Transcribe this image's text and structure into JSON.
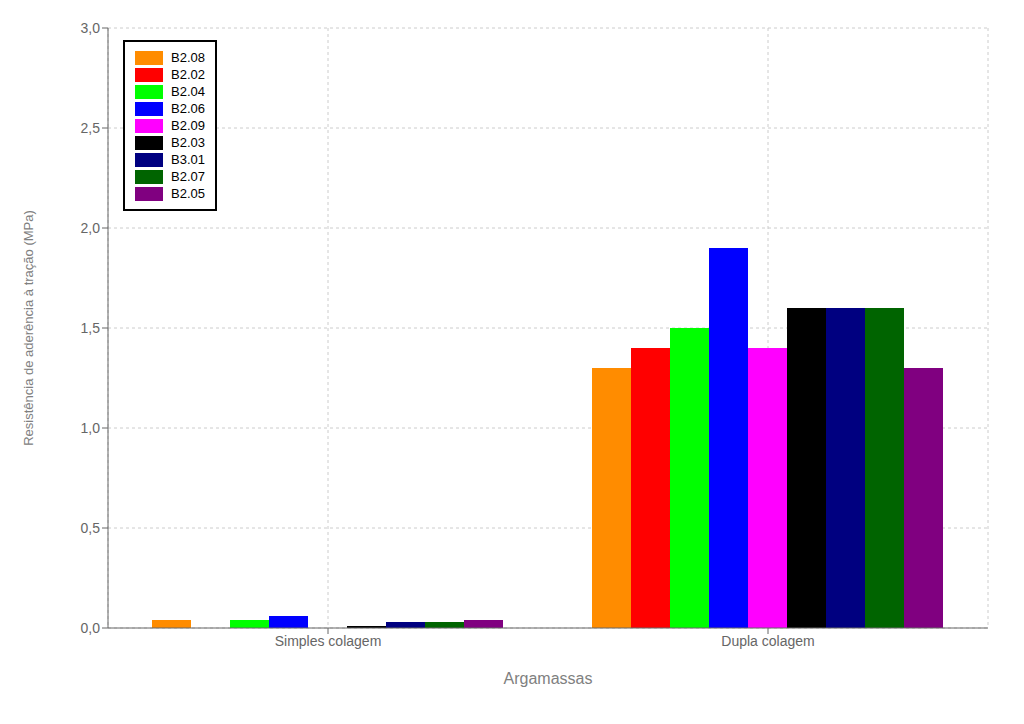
{
  "chart_data": {
    "type": "bar",
    "categories": [
      "Simples colagem",
      "Dupla colagem"
    ],
    "series": [
      {
        "name": "B2.08",
        "color": "#FF8C00",
        "values": [
          0.04,
          1.3
        ]
      },
      {
        "name": "B2.02",
        "color": "#FF0000",
        "values": [
          0.0,
          1.4
        ]
      },
      {
        "name": "B2.04",
        "color": "#00FF00",
        "values": [
          0.04,
          1.5
        ]
      },
      {
        "name": "B2.06",
        "color": "#0000FF",
        "values": [
          0.06,
          1.9
        ]
      },
      {
        "name": "B2.09",
        "color": "#FF00FF",
        "values": [
          0.0,
          1.4
        ]
      },
      {
        "name": "B2.03",
        "color": "#000000",
        "values": [
          0.01,
          1.6
        ]
      },
      {
        "name": "B3.01",
        "color": "#000080",
        "values": [
          0.03,
          1.6
        ]
      },
      {
        "name": "B2.07",
        "color": "#006400",
        "values": [
          0.03,
          1.6
        ]
      },
      {
        "name": "B2.05",
        "color": "#800080",
        "values": [
          0.04,
          1.3
        ]
      }
    ],
    "xlabel": "Argamassas",
    "ylabel": "Resistência de aderência à tração (MPa)",
    "ylim": [
      0.0,
      3.0
    ],
    "yticks": [
      {
        "value": 0.0,
        "label": "0,0"
      },
      {
        "value": 0.5,
        "label": "0,5"
      },
      {
        "value": 1.0,
        "label": "1,0"
      },
      {
        "value": 1.5,
        "label": "1,5"
      },
      {
        "value": 2.0,
        "label": "2,0"
      },
      {
        "value": 2.5,
        "label": "2,5"
      },
      {
        "value": 3.0,
        "label": "3,0"
      }
    ],
    "grid": true,
    "legend": "upper left"
  }
}
